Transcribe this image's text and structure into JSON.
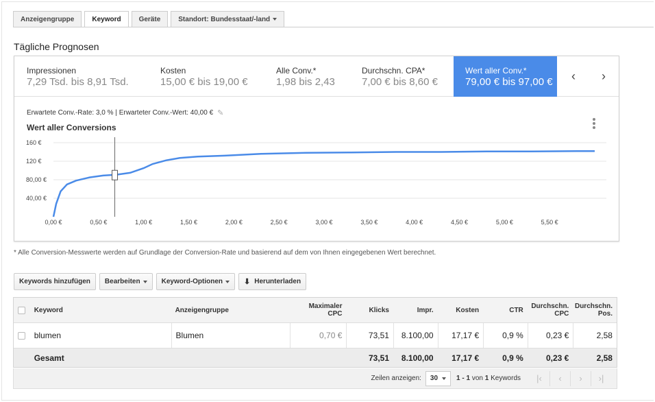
{
  "tabs": [
    {
      "label": "Anzeigengruppe"
    },
    {
      "label": "Keyword"
    },
    {
      "label": "Geräte"
    },
    {
      "label": "Standort: Bundesstaat/-land"
    }
  ],
  "section_title": "Tägliche Prognosen",
  "metrics": [
    {
      "label": "Impressionen",
      "value": "7,29 Tsd. bis 8,91 Tsd."
    },
    {
      "label": "Kosten",
      "value": "15,00 € bis 19,00 €"
    },
    {
      "label": "Alle Conv.*",
      "value": "1,98 bis 2,43"
    },
    {
      "label": "Durchschn. CPA*",
      "value": "7,00 € bis 8,60 €"
    },
    {
      "label": "Wert aller Conv.*",
      "value": "79,00 € bis 97,00 €"
    }
  ],
  "nav": {
    "prev": "‹",
    "next": "›"
  },
  "conv_info": "Erwartete Conv.-Rate: 3,0 % | Erwarteter Conv.-Wert: 40,00 €",
  "chart_title": "Wert aller Conversions",
  "chart_data": {
    "type": "line",
    "title": "Wert aller Conversions",
    "xlabel": "",
    "ylabel": "",
    "x_ticks": [
      "0,00 €",
      "0,50 €",
      "1,00 €",
      "1,50 €",
      "2,00 €",
      "2,50 €",
      "3,00 €",
      "3,50 €",
      "4,00 €",
      "4,50 €",
      "5,00 €",
      "5,50 €"
    ],
    "y_ticks": [
      "40,00 €",
      "80,00 €",
      "120 €",
      "160 €"
    ],
    "xlim": [
      0,
      6
    ],
    "ylim": [
      0,
      160
    ],
    "grid": true,
    "series": [
      {
        "color": "#4a8be8",
        "x": [
          0,
          0.03,
          0.08,
          0.15,
          0.25,
          0.4,
          0.55,
          0.7,
          0.85,
          1.0,
          1.1,
          1.25,
          1.4,
          1.6,
          1.9,
          2.3,
          2.8,
          3.3,
          3.8,
          4.3,
          4.8,
          5.3,
          5.8,
          6.0
        ],
        "y": [
          0,
          28,
          55,
          70,
          78,
          85,
          89,
          91,
          95,
          105,
          114,
          122,
          127,
          130,
          132,
          136,
          138,
          139,
          140,
          140,
          141,
          141,
          142,
          142
        ]
      }
    ],
    "marker": {
      "x": 0.68,
      "y": 90
    }
  },
  "footnote": "* Alle Conversion-Messwerte werden auf Grundlage der Conversion-Rate und basierend auf dem von Ihnen eingegebenen Wert berechnet.",
  "toolbar": {
    "add_keywords": "Keywords hinzufügen",
    "edit": "Bearbeiten",
    "keyword_options": "Keyword-Optionen",
    "download": "Herunterladen"
  },
  "table": {
    "headers": {
      "keyword": "Keyword",
      "adgroup": "Anzeigengruppe",
      "max_cpc": "Maximaler CPC",
      "clicks": "Klicks",
      "impr": "Impr.",
      "cost": "Kosten",
      "ctr": "CTR",
      "avg_cpc": "Durchschn. CPC",
      "avg_pos": "Durchschn. Pos."
    },
    "rows": [
      {
        "keyword": "blumen",
        "adgroup": "Blumen",
        "max_cpc": "0,70 €",
        "clicks": "73,51",
        "impr": "8.100,00",
        "cost": "17,17 €",
        "ctr": "0,9 %",
        "avg_cpc": "0,23 €",
        "avg_pos": "2,58"
      }
    ],
    "total": {
      "label": "Gesamt",
      "clicks": "73,51",
      "impr": "8.100,00",
      "cost": "17,17 €",
      "ctr": "0,9 %",
      "avg_cpc": "0,23 €",
      "avg_pos": "2,58"
    }
  },
  "pager": {
    "show_label": "Zeilen anzeigen:",
    "page_size": "30",
    "range": "1 - 1",
    "of": "von",
    "count": "1",
    "unit": "Keywords",
    "first": "|‹",
    "prev": "‹",
    "next": "›",
    "last": "›|"
  },
  "colors": {
    "accent": "#4a8be8",
    "line": "#4a8be8"
  }
}
